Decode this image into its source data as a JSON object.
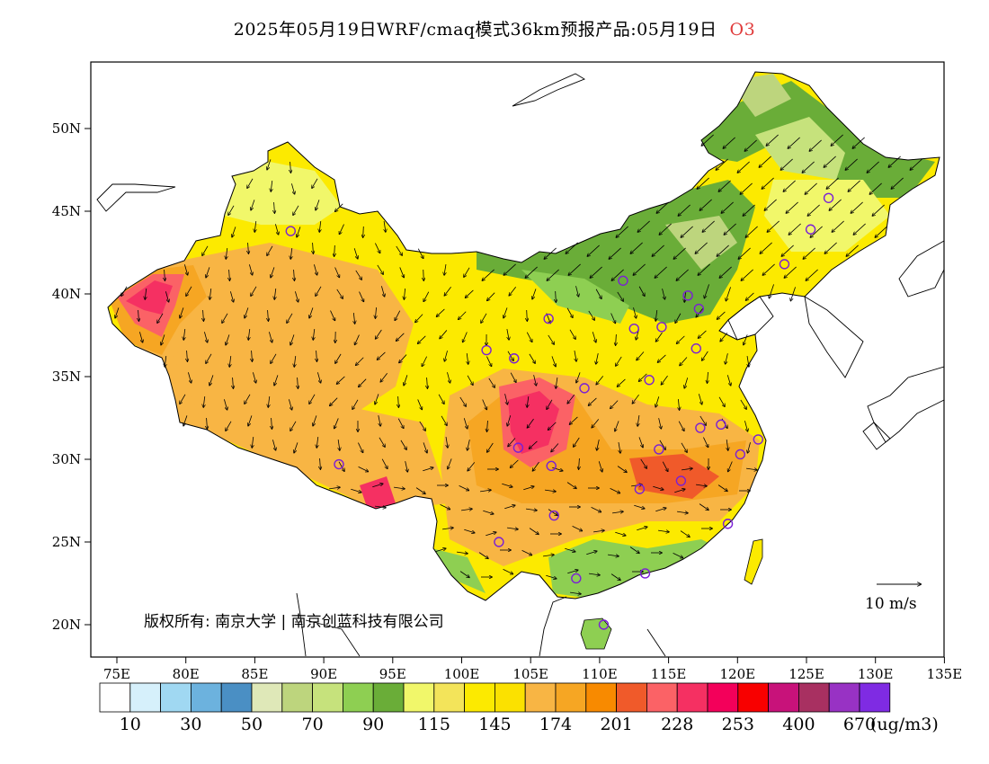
{
  "title": "2025年05月19日WRF/cmaq模式36km预报产品:05月19日",
  "pollutant": "O3",
  "copyright": "版权所有: 南京大学 | 南京创蓝科技有限公司",
  "wind_legend": "10  m/s",
  "unit": "(ug/m3)",
  "lat_labels": [
    "50N",
    "45N",
    "40N",
    "35N",
    "30N",
    "25N",
    "20N"
  ],
  "lon_labels": [
    "75E",
    "80E",
    "85E",
    "90E",
    "95E",
    "100E",
    "105E",
    "110E",
    "115E",
    "120E",
    "125E",
    "130E",
    "135E"
  ],
  "colorbar": {
    "colors": [
      "#ffffff",
      "#d6f0fb",
      "#a0d8f2",
      "#6cb2de",
      "#4a8fc4",
      "#dfe8b8",
      "#bdd57d",
      "#c6e27c",
      "#8ecf52",
      "#6aad38",
      "#f1f76a",
      "#f3e45a",
      "#fcea00",
      "#fbe100",
      "#f8b544",
      "#f6a623",
      "#f88a00",
      "#f05a2a",
      "#fb6266",
      "#f53062",
      "#f3005a",
      "#f80000",
      "#c8127a",
      "#a83061",
      "#9832c4",
      "#7f2be3"
    ],
    "labels": [
      "10",
      "30",
      "50",
      "70",
      "90",
      "115",
      "145",
      "174",
      "201",
      "228",
      "253",
      "400",
      "670"
    ]
  },
  "cities_note": "monitoring city markers",
  "colors": {
    "coast": "#000000",
    "wind": "#000000",
    "marker": "#7a1fd6",
    "title_pollutant": "#e03a3a"
  }
}
